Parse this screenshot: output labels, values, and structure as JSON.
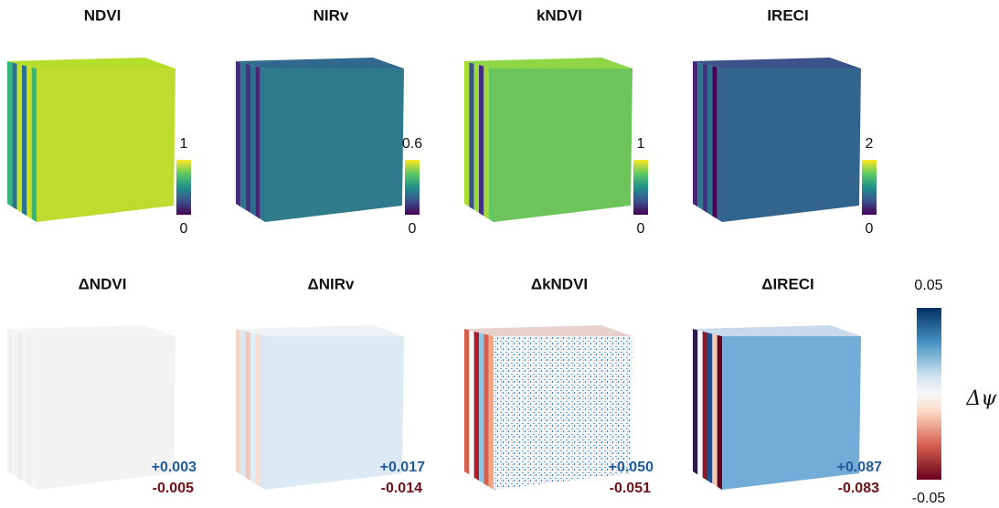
{
  "top_row": [
    {
      "title": "NDVI",
      "colorbar_max": "1",
      "colorbar_min": "0"
    },
    {
      "title": "NIRv",
      "colorbar_max": "0.6",
      "colorbar_min": "0"
    },
    {
      "title": "kNDVI",
      "colorbar_max": "1",
      "colorbar_min": "0"
    },
    {
      "title": "IRECI",
      "colorbar_max": "2",
      "colorbar_min": "0"
    }
  ],
  "bottom_row": [
    {
      "title": "ΔNDVI",
      "max_change": "+0.003",
      "min_change": "-0.005"
    },
    {
      "title": "ΔNIRv",
      "max_change": "+0.017",
      "min_change": "-0.014"
    },
    {
      "title": "ΔkNDVI",
      "max_change": "+0.050",
      "min_change": "-0.051"
    },
    {
      "title": "ΔIRECI",
      "max_change": "+0.087",
      "min_change": "-0.083"
    }
  ],
  "shared_colorbar": {
    "max": "0.05",
    "min": "-0.05",
    "label": "Δψ"
  }
}
